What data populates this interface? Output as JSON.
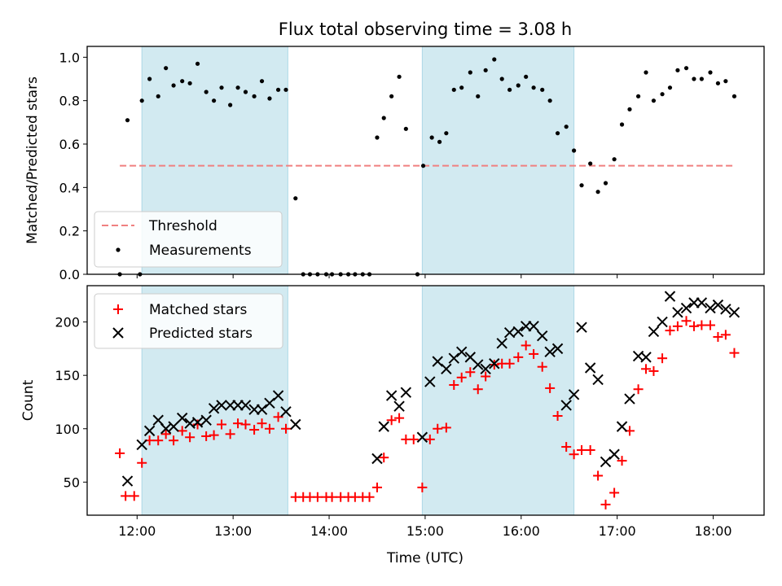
{
  "figure": {
    "title": "Flux total observing time = 3.08 h"
  },
  "chart_data": [
    {
      "type": "scatter",
      "panel": "top",
      "ylabel": "Matched/Predicted stars",
      "xlim": [
        11.48,
        18.53
      ],
      "ylim": [
        0,
        1.05
      ],
      "yticks": [
        0.0,
        0.2,
        0.4,
        0.6,
        0.8,
        1.0
      ],
      "ytick_labels": [
        "0.0",
        "0.2",
        "0.4",
        "0.6",
        "0.8",
        "1.0"
      ],
      "shaded_intervals": [
        [
          12.05,
          13.57
        ],
        [
          14.97,
          16.55
        ]
      ],
      "threshold": {
        "name": "Threshold",
        "value": 0.5,
        "x_range": [
          11.82,
          18.23
        ],
        "color": "#f08080",
        "style": "dashed"
      },
      "legend": {
        "position": "lower-left",
        "entries": [
          "Threshold",
          "Measurements"
        ]
      },
      "series": [
        {
          "name": "Measurements",
          "color": "#000000",
          "x": [
            11.82,
            11.9,
            12.03,
            12.05,
            12.13,
            12.22,
            12.3,
            12.38,
            12.47,
            12.55,
            12.63,
            12.72,
            12.8,
            12.88,
            12.97,
            13.05,
            13.13,
            13.22,
            13.3,
            13.38,
            13.47,
            13.55,
            13.65,
            13.73,
            13.8,
            13.88,
            13.97,
            14.03,
            14.12,
            14.2,
            14.27,
            14.35,
            14.42,
            14.5,
            14.57,
            14.65,
            14.73,
            14.8,
            14.92,
            14.98,
            15.07,
            15.15,
            15.22,
            15.3,
            15.38,
            15.47,
            15.55,
            15.63,
            15.72,
            15.8,
            15.88,
            15.97,
            16.05,
            16.13,
            16.22,
            16.3,
            16.38,
            16.47,
            16.55,
            16.63,
            16.72,
            16.8,
            16.88,
            16.97,
            17.05,
            17.13,
            17.22,
            17.3,
            17.38,
            17.47,
            17.55,
            17.63,
            17.72,
            17.8,
            17.88,
            17.97,
            18.05,
            18.13,
            18.22
          ],
          "y": [
            0.0,
            0.71,
            0.0,
            0.8,
            0.9,
            0.82,
            0.95,
            0.87,
            0.89,
            0.88,
            0.97,
            0.84,
            0.8,
            0.86,
            0.78,
            0.86,
            0.84,
            0.82,
            0.89,
            0.81,
            0.85,
            0.85,
            0.35,
            0.0,
            0.0,
            0.0,
            0.0,
            0.0,
            0.0,
            0.0,
            0.0,
            0.0,
            0.0,
            0.63,
            0.72,
            0.82,
            0.91,
            0.67,
            0.0,
            0.5,
            0.63,
            0.61,
            0.65,
            0.85,
            0.86,
            0.93,
            0.82,
            0.94,
            0.99,
            0.9,
            0.85,
            0.87,
            0.91,
            0.86,
            0.85,
            0.8,
            0.65,
            0.68,
            0.57,
            0.41,
            0.51,
            0.38,
            0.42,
            0.53,
            0.69,
            0.76,
            0.82,
            0.93,
            0.8,
            0.83,
            0.86,
            0.94,
            0.95,
            0.9,
            0.9,
            0.93,
            0.88,
            0.89,
            0.82
          ]
        }
      ]
    },
    {
      "type": "scatter",
      "panel": "bottom",
      "xlabel": "Time (UTC)",
      "ylabel": "Count",
      "xlim": [
        11.48,
        18.53
      ],
      "ylim": [
        19,
        234
      ],
      "xticks": [
        12,
        13,
        14,
        15,
        16,
        17,
        18
      ],
      "xtick_labels": [
        "12:00",
        "13:00",
        "14:00",
        "15:00",
        "16:00",
        "17:00",
        "18:00"
      ],
      "yticks": [
        50,
        100,
        150,
        200
      ],
      "ytick_labels": [
        "50",
        "100",
        "150",
        "200"
      ],
      "shaded_intervals": [
        [
          12.05,
          13.57
        ],
        [
          14.97,
          16.55
        ]
      ],
      "legend": {
        "position": "upper-left",
        "entries": [
          "Matched stars",
          "Predicted stars"
        ]
      },
      "series": [
        {
          "name": "Matched stars",
          "marker": "plus",
          "color": "#ff0000",
          "x": [
            11.82,
            11.88,
            11.97,
            12.05,
            12.13,
            12.22,
            12.3,
            12.38,
            12.47,
            12.55,
            12.63,
            12.72,
            12.8,
            12.88,
            12.97,
            13.05,
            13.13,
            13.22,
            13.3,
            13.38,
            13.47,
            13.55,
            13.65,
            13.73,
            13.8,
            13.88,
            13.97,
            14.03,
            14.12,
            14.2,
            14.27,
            14.35,
            14.42,
            14.5,
            14.57,
            14.65,
            14.73,
            14.8,
            14.88,
            14.97,
            15.05,
            15.13,
            15.22,
            15.3,
            15.38,
            15.47,
            15.55,
            15.63,
            15.72,
            15.8,
            15.88,
            15.97,
            16.05,
            16.13,
            16.22,
            16.3,
            16.38,
            16.47,
            16.55,
            16.63,
            16.72,
            16.8,
            16.88,
            16.97,
            17.05,
            17.13,
            17.22,
            17.3,
            17.38,
            17.47,
            17.55,
            17.63,
            17.72,
            17.8,
            17.88,
            17.97,
            18.05,
            18.13,
            18.22
          ],
          "y": [
            77,
            37,
            37,
            68,
            89,
            89,
            95,
            89,
            98,
            92,
            104,
            93,
            94,
            104,
            95,
            105,
            104,
            99,
            105,
            100,
            111,
            100,
            36,
            36,
            36,
            36,
            36,
            36,
            36,
            36,
            36,
            36,
            36,
            45,
            73,
            108,
            110,
            90,
            90,
            45,
            90,
            100,
            101,
            141,
            148,
            153,
            137,
            149,
            160,
            161,
            161,
            167,
            178,
            170,
            158,
            138,
            112,
            83,
            76,
            80,
            80,
            56,
            29,
            40,
            70,
            98,
            137,
            156,
            154,
            166,
            192,
            196,
            201,
            196,
            197,
            197,
            186,
            188,
            171
          ]
        },
        {
          "name": "Predicted stars",
          "marker": "cross",
          "color": "#000000",
          "x": [
            11.9,
            12.05,
            12.13,
            12.22,
            12.3,
            12.38,
            12.47,
            12.55,
            12.63,
            12.72,
            12.8,
            12.88,
            12.97,
            13.05,
            13.13,
            13.22,
            13.3,
            13.38,
            13.47,
            13.55,
            13.65,
            14.5,
            14.57,
            14.65,
            14.73,
            14.8,
            14.97,
            15.05,
            15.13,
            15.22,
            15.3,
            15.38,
            15.47,
            15.55,
            15.63,
            15.72,
            15.8,
            15.88,
            15.97,
            16.05,
            16.13,
            16.22,
            16.3,
            16.38,
            16.47,
            16.55,
            16.63,
            16.72,
            16.8,
            16.88,
            16.97,
            17.05,
            17.13,
            17.22,
            17.3,
            17.38,
            17.47,
            17.55,
            17.63,
            17.72,
            17.8,
            17.88,
            17.97,
            18.05,
            18.13,
            18.22
          ],
          "y": [
            51,
            85,
            98,
            108,
            100,
            102,
            110,
            105,
            106,
            108,
            119,
            122,
            122,
            122,
            122,
            118,
            118,
            124,
            131,
            116,
            104,
            72,
            102,
            131,
            121,
            134,
            92,
            144,
            163,
            156,
            166,
            172,
            167,
            160,
            156,
            161,
            180,
            190,
            191,
            196,
            196,
            187,
            172,
            175,
            122,
            132,
            195,
            157,
            146,
            69,
            76,
            102,
            128,
            168,
            167,
            191,
            200,
            224,
            209,
            213,
            218,
            218,
            213,
            216,
            212,
            209
          ]
        }
      ]
    }
  ],
  "colors": {
    "shade": "#add8e6",
    "threshold": "#f08080",
    "matched": "#ff0000",
    "predicted": "#000000",
    "measurement": "#000000"
  }
}
